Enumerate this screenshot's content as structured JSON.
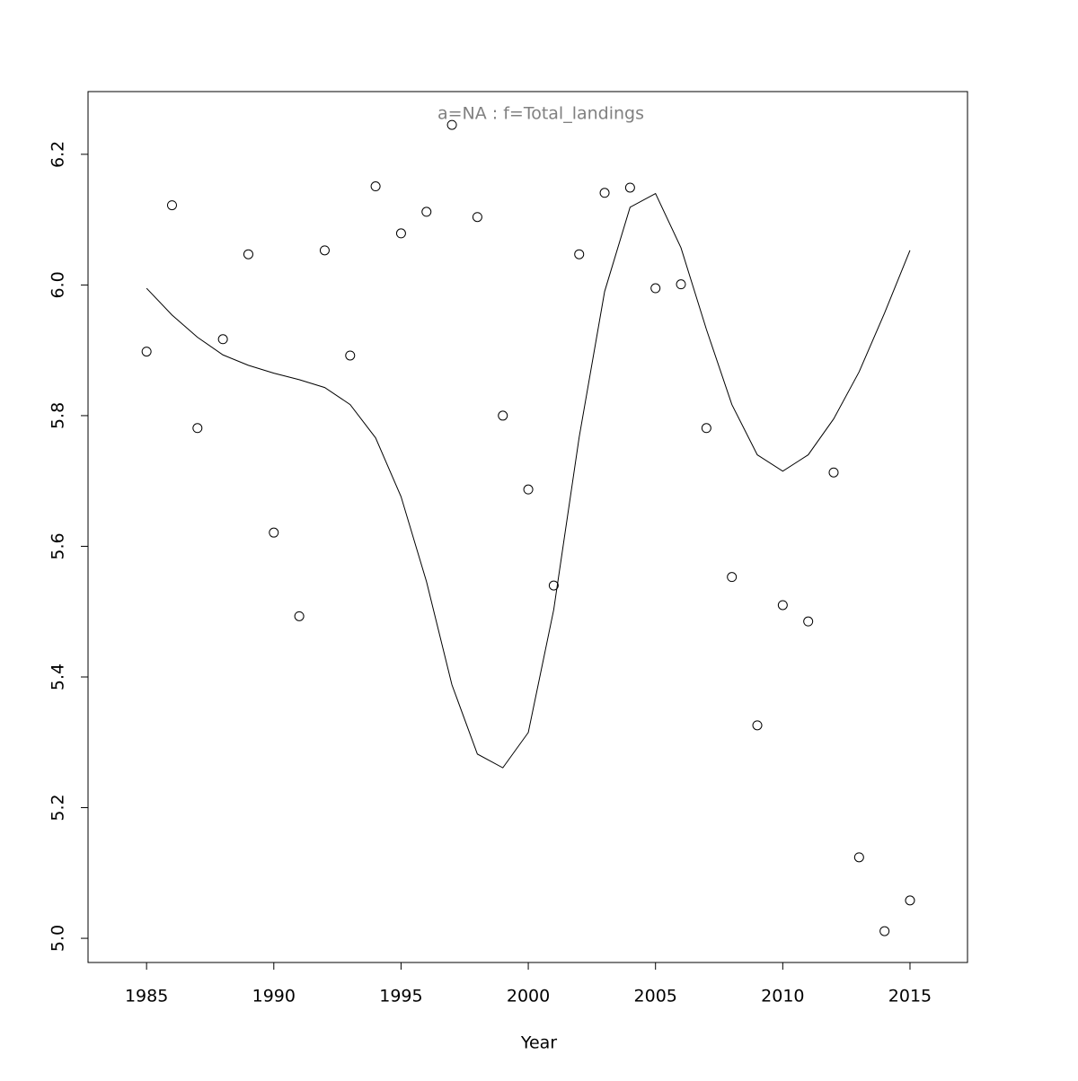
{
  "chart_data": {
    "type": "scatter",
    "title": "a=NA  :  f=Total_landings",
    "x_label": "Year",
    "x": [
      1985,
      1986,
      1987,
      1988,
      1989,
      1990,
      1991,
      1992,
      1993,
      1994,
      1995,
      1996,
      1997,
      1998,
      1999,
      2000,
      2001,
      2002,
      2003,
      2004,
      2005,
      2006,
      2007,
      2008,
      2009,
      2010,
      2011,
      2012,
      2013,
      2014,
      2015
    ],
    "series": [
      {
        "color": "#000000",
        "marker": "circle",
        "values": [
          5.898,
          6.122,
          5.781,
          5.917,
          6.047,
          5.621,
          5.493,
          6.053,
          5.892,
          6.151,
          6.079,
          6.112,
          6.245,
          6.104,
          5.8,
          5.687,
          5.54,
          6.047,
          6.141,
          6.149,
          5.995,
          6.001,
          5.781,
          5.553,
          5.326,
          5.51,
          5.485,
          5.713,
          5.124,
          5.011,
          5.058
        ]
      },
      {
        "color": "#000000",
        "style": "line",
        "values": [
          5.995,
          5.954,
          5.92,
          5.893,
          5.877,
          5.865,
          5.855,
          5.843,
          5.817,
          5.766,
          5.676,
          5.546,
          5.388,
          5.282,
          5.261,
          5.315,
          5.503,
          5.767,
          5.99,
          6.119,
          6.14,
          6.057,
          5.932,
          5.817,
          5.74,
          5.715,
          5.74,
          5.795,
          5.867,
          5.957,
          6.053
        ]
      }
    ],
    "xlim": [
      1982.7,
      2017.26
    ],
    "ylim": [
      4.963,
      6.296
    ],
    "xticks": [
      1985,
      1990,
      1995,
      2000,
      2005,
      2010,
      2015
    ],
    "yticks": [
      {
        "value": 5.0,
        "label": "5.0"
      },
      5.2,
      5.4,
      5.6,
      5.8,
      {
        "value": 6.0,
        "label": "6.0"
      },
      6.2
    ],
    "grid": false
  }
}
